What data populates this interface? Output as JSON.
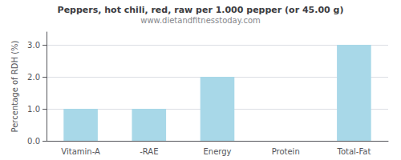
{
  "chart_data": {
    "type": "bar",
    "title": "Peppers, hot chili, red, raw per 1.000 pepper (or 45.00 g)",
    "subtitle": "www.dietandfitnesstoday.com",
    "categories": [
      "Vitamin-A",
      "-RAE",
      "Energy",
      "Protein",
      "Total-Fat"
    ],
    "values": [
      1.0,
      1.0,
      2.0,
      0.0,
      3.0
    ],
    "color": "#a8d8e8",
    "ylabel": "Percentage of RDH (%)",
    "ylim": [
      0.0,
      3.4
    ],
    "yticks": [
      {
        "value": 0.0,
        "label": "0.0"
      },
      {
        "value": 1.0,
        "label": "1.0"
      },
      {
        "value": 2.0,
        "label": "2.0"
      },
      {
        "value": 3.0,
        "label": "3.0"
      }
    ],
    "grid": true
  }
}
